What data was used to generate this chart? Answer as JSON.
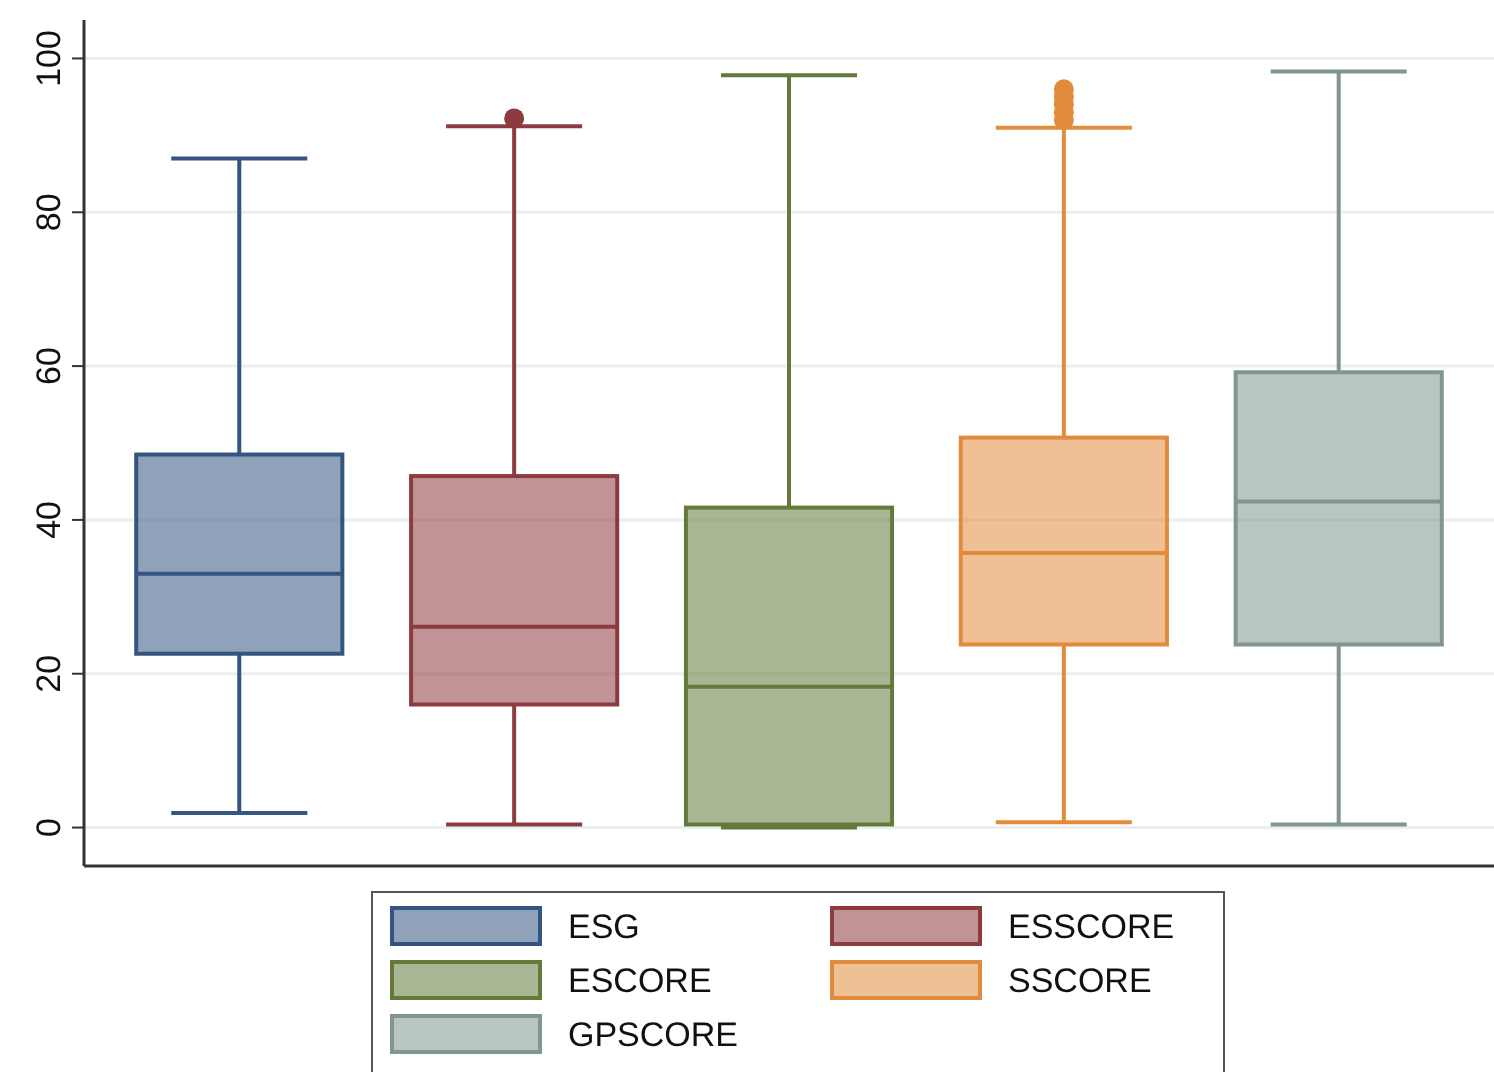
{
  "chart_data": {
    "type": "box",
    "categories": [
      null,
      null,
      null,
      null,
      null
    ],
    "ylim": [
      -5,
      105
    ],
    "yticks": [
      0,
      20,
      40,
      60,
      80,
      100
    ],
    "grid": "y",
    "legend": "bottom",
    "series": [
      {
        "name": "ESG",
        "color": "#34557f",
        "boxes": [
          {
            "low": 1.9,
            "q1": 22.6,
            "median": 33,
            "q3": 48.5,
            "high": 87
          },
          null,
          null,
          null,
          null
        ]
      },
      {
        "name": "ESSCORE",
        "color": "#8c3b40",
        "boxes": [
          null,
          {
            "low": 0.4,
            "q1": 16,
            "median": 26.1,
            "q3": 45.7,
            "high": 91.2,
            "outliers": [
              92.2
            ]
          },
          null,
          null,
          null
        ]
      },
      {
        "name": "ESCORE",
        "color": "#637a3b",
        "boxes": [
          null,
          null,
          {
            "low": 0,
            "q1": 0.4,
            "median": 18.3,
            "q3": 41.6,
            "high": 97.8
          },
          null,
          null
        ]
      },
      {
        "name": "SSCORE",
        "color": "#e08c3c",
        "boxes": [
          null,
          null,
          null,
          {
            "low": 0.7,
            "q1": 23.8,
            "median": 35.7,
            "q3": 50.7,
            "high": 91,
            "outliers": [
              92,
              93,
              94,
              95,
              96
            ]
          },
          null
        ]
      },
      {
        "name": "GPSCORE",
        "color": "#80968f",
        "boxes": [
          null,
          null,
          null,
          null,
          {
            "low": 0.4,
            "q1": 23.8,
            "median": 42.4,
            "q3": 59.2,
            "high": 98.3
          }
        ]
      }
    ]
  }
}
